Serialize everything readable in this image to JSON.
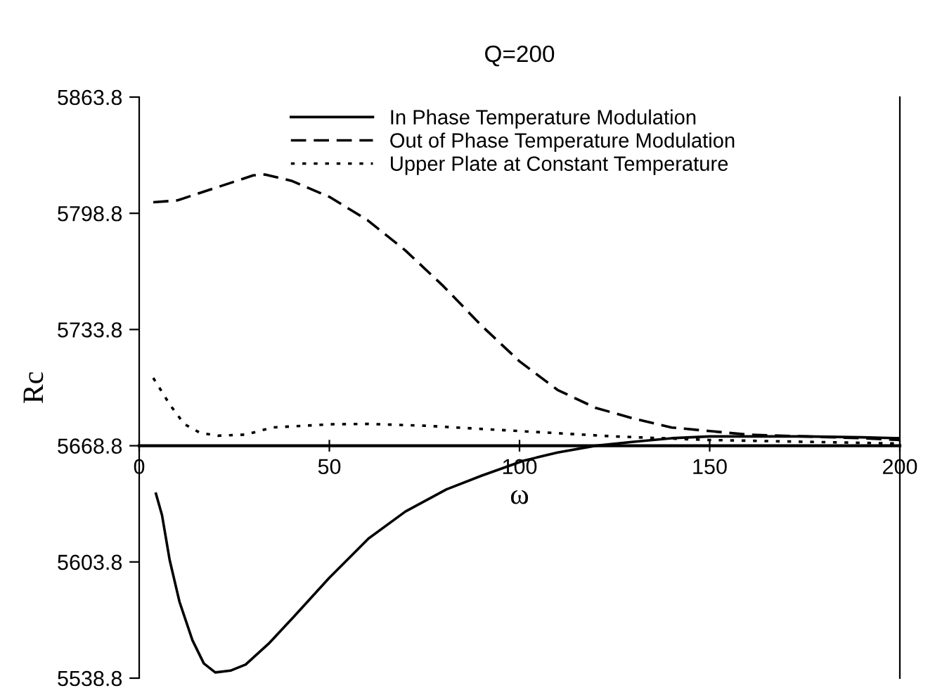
{
  "chart_data": {
    "type": "line",
    "title": "Q=200",
    "xlabel": "ω",
    "ylabel": "Rc",
    "xlim": [
      0,
      200
    ],
    "xticks": [
      0,
      50,
      100,
      150,
      200
    ],
    "ylim": [
      5538.8,
      5863.8
    ],
    "yticks": [
      {
        "value": 5538.8,
        "label": "5538.8"
      },
      {
        "value": 5603.8,
        "label": "5603.8"
      },
      {
        "value": 5668.8,
        "label": "5668.8"
      },
      {
        "value": 5733.8,
        "label": "5733.8"
      },
      {
        "value": 5798.8,
        "label": "5798.8"
      },
      {
        "value": 5863.8,
        "label": "5863.8"
      }
    ],
    "grid": false,
    "legend": "top right",
    "series": [
      {
        "name": "In Phase Temperature Modulation",
        "color": "#000000",
        "line_style": "solid",
        "x": [
          4.4,
          6,
          8,
          10.6,
          14,
          17,
          20,
          24,
          28,
          34,
          40.6,
          50,
          60.3,
          70,
          80.8,
          90,
          101,
          110,
          120,
          130,
          140,
          150,
          160,
          175,
          190,
          200
        ],
        "values": [
          5642,
          5630,
          5605,
          5581.5,
          5560,
          5547,
          5542,
          5543,
          5546.4,
          5558,
          5573,
          5595,
          5616.9,
          5632,
          5644.4,
          5652,
          5660.4,
          5665,
          5668.8,
          5671,
          5673,
          5674,
          5674,
          5674,
          5673.5,
          5673
        ]
      },
      {
        "name": "Out of Phase Temperature Modulation",
        "color": "#000000",
        "line_style": "dashed",
        "x": [
          3.7,
          10,
          20,
          30,
          33,
          40,
          50,
          60,
          70,
          80,
          90,
          100,
          110,
          120,
          130,
          140,
          150,
          160,
          175,
          190,
          200
        ],
        "values": [
          5805,
          5806,
          5813,
          5820,
          5820.5,
          5817,
          5808,
          5795,
          5778,
          5758,
          5736,
          5716,
          5700,
          5690,
          5684,
          5679,
          5677,
          5675,
          5674,
          5673,
          5672
        ]
      },
      {
        "name": "Upper Plate at Constant Temperature",
        "color": "#000000",
        "line_style": "dotted",
        "x": [
          3.7,
          8,
          11.8,
          16,
          20.7,
          28,
          35,
          50.3,
          60,
          75,
          100,
          125,
          150,
          175,
          200
        ],
        "values": [
          5706.7,
          5692,
          5681,
          5676,
          5674.4,
          5675,
          5679,
          5680.8,
          5681,
          5680,
          5677,
          5674,
          5672,
          5671,
          5670
        ]
      }
    ]
  }
}
